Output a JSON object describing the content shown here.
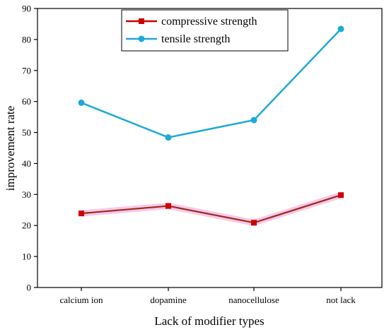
{
  "chart_data": {
    "type": "line",
    "categories": [
      "calcium ion",
      "dopamine",
      "nanocellulose",
      "not lack"
    ],
    "series": [
      {
        "name": "compressive strength",
        "values": [
          23.9,
          26.3,
          20.9,
          29.8
        ],
        "color": "#cc0000",
        "marker": "square"
      },
      {
        "name": "tensile strength",
        "values": [
          59.6,
          48.4,
          54.0,
          83.4
        ],
        "color": "#1eaad6",
        "marker": "circle"
      }
    ],
    "xlabel": "Lack of modifier types",
    "ylabel": "improvement rate",
    "ylim": [
      0,
      90
    ],
    "yticks": [
      0,
      10,
      20,
      30,
      40,
      50,
      60,
      70,
      80,
      90
    ],
    "grid": false,
    "legend_position": "top-center"
  }
}
